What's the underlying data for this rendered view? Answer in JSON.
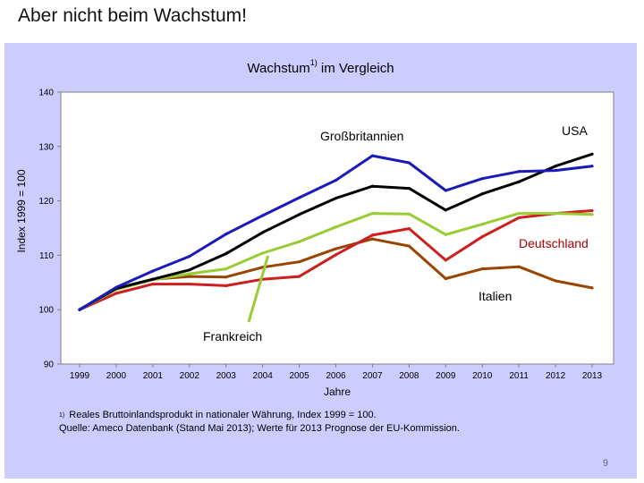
{
  "slide": {
    "title": "Aber nicht beim Wachstum!",
    "page_number": "9"
  },
  "footnote": {
    "marker": "1)",
    "line1": "Reales Bruttoinlandsprodukt in nationaler Währung, Index 1999 = 100.",
    "line2": "Quelle: Ameco Datenbank (Stand Mai 2013); Werte für 2013 Prognose der EU-Kommission."
  },
  "chart_data": {
    "type": "line",
    "title": "Wachstum",
    "title_sup": "1)",
    "xlabel": "Jahre",
    "ylabel": "Index 1999 = 100",
    "ylim": [
      90,
      140
    ],
    "y_ticks": [
      90,
      100,
      110,
      120,
      130,
      140
    ],
    "categories": [
      "1999",
      "2000",
      "2001",
      "2002",
      "2003",
      "2004",
      "2005",
      "2006",
      "2007",
      "2008",
      "2009",
      "2010",
      "2011",
      "2012",
      "2013"
    ],
    "series": [
      {
        "name": "USA",
        "color": "#1a1ab8",
        "values": [
          100,
          104.1,
          107.1,
          109.8,
          113.9,
          117.3,
          120.6,
          123.8,
          128.3,
          127.0,
          121.9,
          124.1,
          125.4,
          125.6,
          126.4
        ]
      },
      {
        "name": "Großbritannien",
        "color": "#000000",
        "values": [
          100,
          103.9,
          105.6,
          107.3,
          110.3,
          114.2,
          117.5,
          120.5,
          122.7,
          122.3,
          118.3,
          121.3,
          123.5,
          126.4,
          128.6
        ]
      },
      {
        "name": "Frankreich",
        "color": "#99cc33",
        "values": [
          100,
          103.7,
          105.5,
          106.6,
          107.5,
          110.4,
          112.5,
          115.2,
          117.7,
          117.6,
          113.8,
          115.7,
          117.7,
          117.7,
          117.5
        ]
      },
      {
        "name": "Deutschland",
        "color": "#cc1f1f",
        "values": [
          100,
          103.0,
          104.7,
          104.7,
          104.4,
          105.6,
          106.1,
          110.1,
          113.7,
          114.9,
          109.1,
          113.4,
          116.9,
          117.7,
          118.2
        ]
      },
      {
        "name": "Italien",
        "color": "#994400",
        "values": [
          100,
          103.7,
          105.6,
          106.1,
          106.0,
          107.8,
          108.8,
          111.2,
          113.0,
          111.7,
          105.7,
          107.5,
          107.9,
          105.3,
          104.0
        ]
      }
    ],
    "annotations": {
      "gb": "Großbritannien",
      "usa": "USA",
      "de": "Deutschland",
      "it": "Italien",
      "fr": "Frankreich"
    }
  }
}
